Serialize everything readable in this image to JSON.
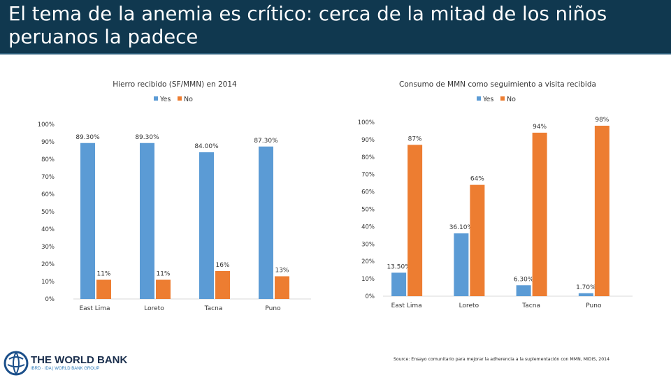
{
  "page": {
    "title": "El tema de la anemia es crítico: cerca de la mitad de los niños peruanos la padece",
    "source": "Source: Ensayo comunitario para mejorar la adherencia a la suplementación con MMN, MIDIS, 2014",
    "logo": {
      "name": "THE WORLD BANK",
      "tagline": "IBRD · IDA | WORLD BANK GROUP"
    }
  },
  "colors": {
    "yes": "#5b9bd5",
    "no": "#ed7d31",
    "title_bg": "#10384f"
  },
  "chart_data": [
    {
      "type": "bar",
      "title": "Hierro recibido (SF/MMN) en 2014",
      "categories": [
        "East Lima",
        "Loreto",
        "Tacna",
        "Puno"
      ],
      "series": [
        {
          "name": "Yes",
          "values": [
            89.3,
            89.3,
            84.0,
            87.3
          ],
          "labels": [
            "89.30%",
            "89.30%",
            "84.00%",
            "87.30%"
          ]
        },
        {
          "name": "No",
          "values": [
            11,
            11,
            16,
            13
          ],
          "labels": [
            "11%",
            "11%",
            "16%",
            "13%"
          ]
        }
      ],
      "yticks": [
        "0%",
        "10%",
        "20%",
        "30%",
        "40%",
        "50%",
        "60%",
        "70%",
        "80%",
        "90%",
        "100%"
      ],
      "ylim": [
        0,
        100
      ],
      "legend": "top-center",
      "grid": false
    },
    {
      "type": "bar",
      "title": "Consumo de MMN como seguimiento a visita recibida",
      "categories": [
        "East Lima",
        "Loreto",
        "Tacna",
        "Puno"
      ],
      "series": [
        {
          "name": "Yes",
          "values": [
            13.5,
            36.1,
            6.3,
            1.7
          ],
          "labels": [
            "13.50%",
            "36.10%",
            "6.30%",
            "1.70%"
          ]
        },
        {
          "name": "No",
          "values": [
            87,
            64,
            94,
            98
          ],
          "labels": [
            "87%",
            "64%",
            "94%",
            "98%"
          ]
        }
      ],
      "yticks": [
        "0%",
        "10%",
        "20%",
        "30%",
        "40%",
        "50%",
        "60%",
        "70%",
        "80%",
        "90%",
        "100%"
      ],
      "ylim": [
        0,
        100
      ],
      "legend": "top-center",
      "grid": false
    }
  ]
}
